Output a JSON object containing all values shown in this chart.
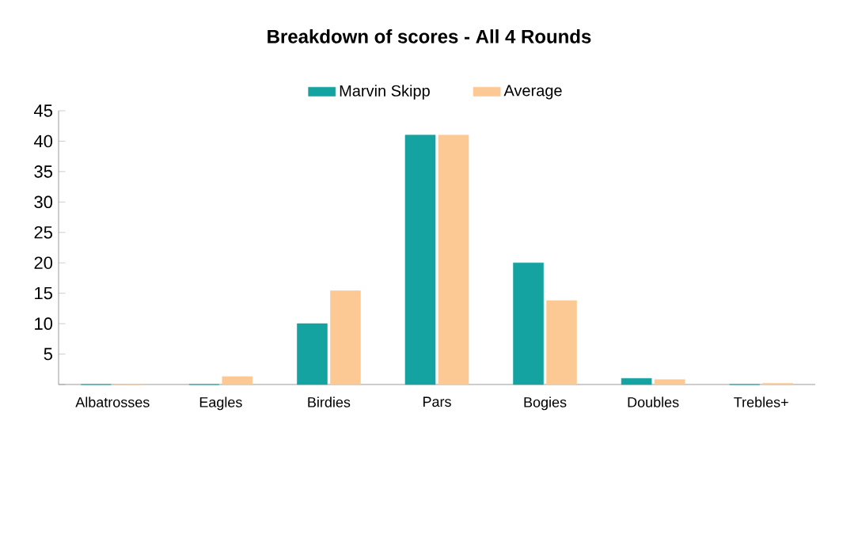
{
  "chart_data": {
    "type": "bar",
    "title": "Breakdown of scores - All 4 Rounds",
    "categories": [
      "Albatrosses",
      "Eagles",
      "Birdies",
      "Pars",
      "Bogies",
      "Doubles",
      "Trebles+"
    ],
    "series": [
      {
        "name": "Marvin Skipp",
        "color": "#14a3a0",
        "values": [
          0,
          0,
          10,
          41,
          20,
          1,
          0
        ]
      },
      {
        "name": "Average",
        "color": "#fcc994",
        "values": [
          0,
          1.3,
          15.4,
          41,
          13.8,
          0.8,
          0.2
        ]
      }
    ],
    "ylim": [
      0,
      45
    ],
    "yticks": [
      {
        "value": 0,
        "label": null
      },
      5,
      10,
      15,
      20,
      25,
      30,
      35,
      40,
      45
    ],
    "grid": false,
    "legend": "top"
  }
}
